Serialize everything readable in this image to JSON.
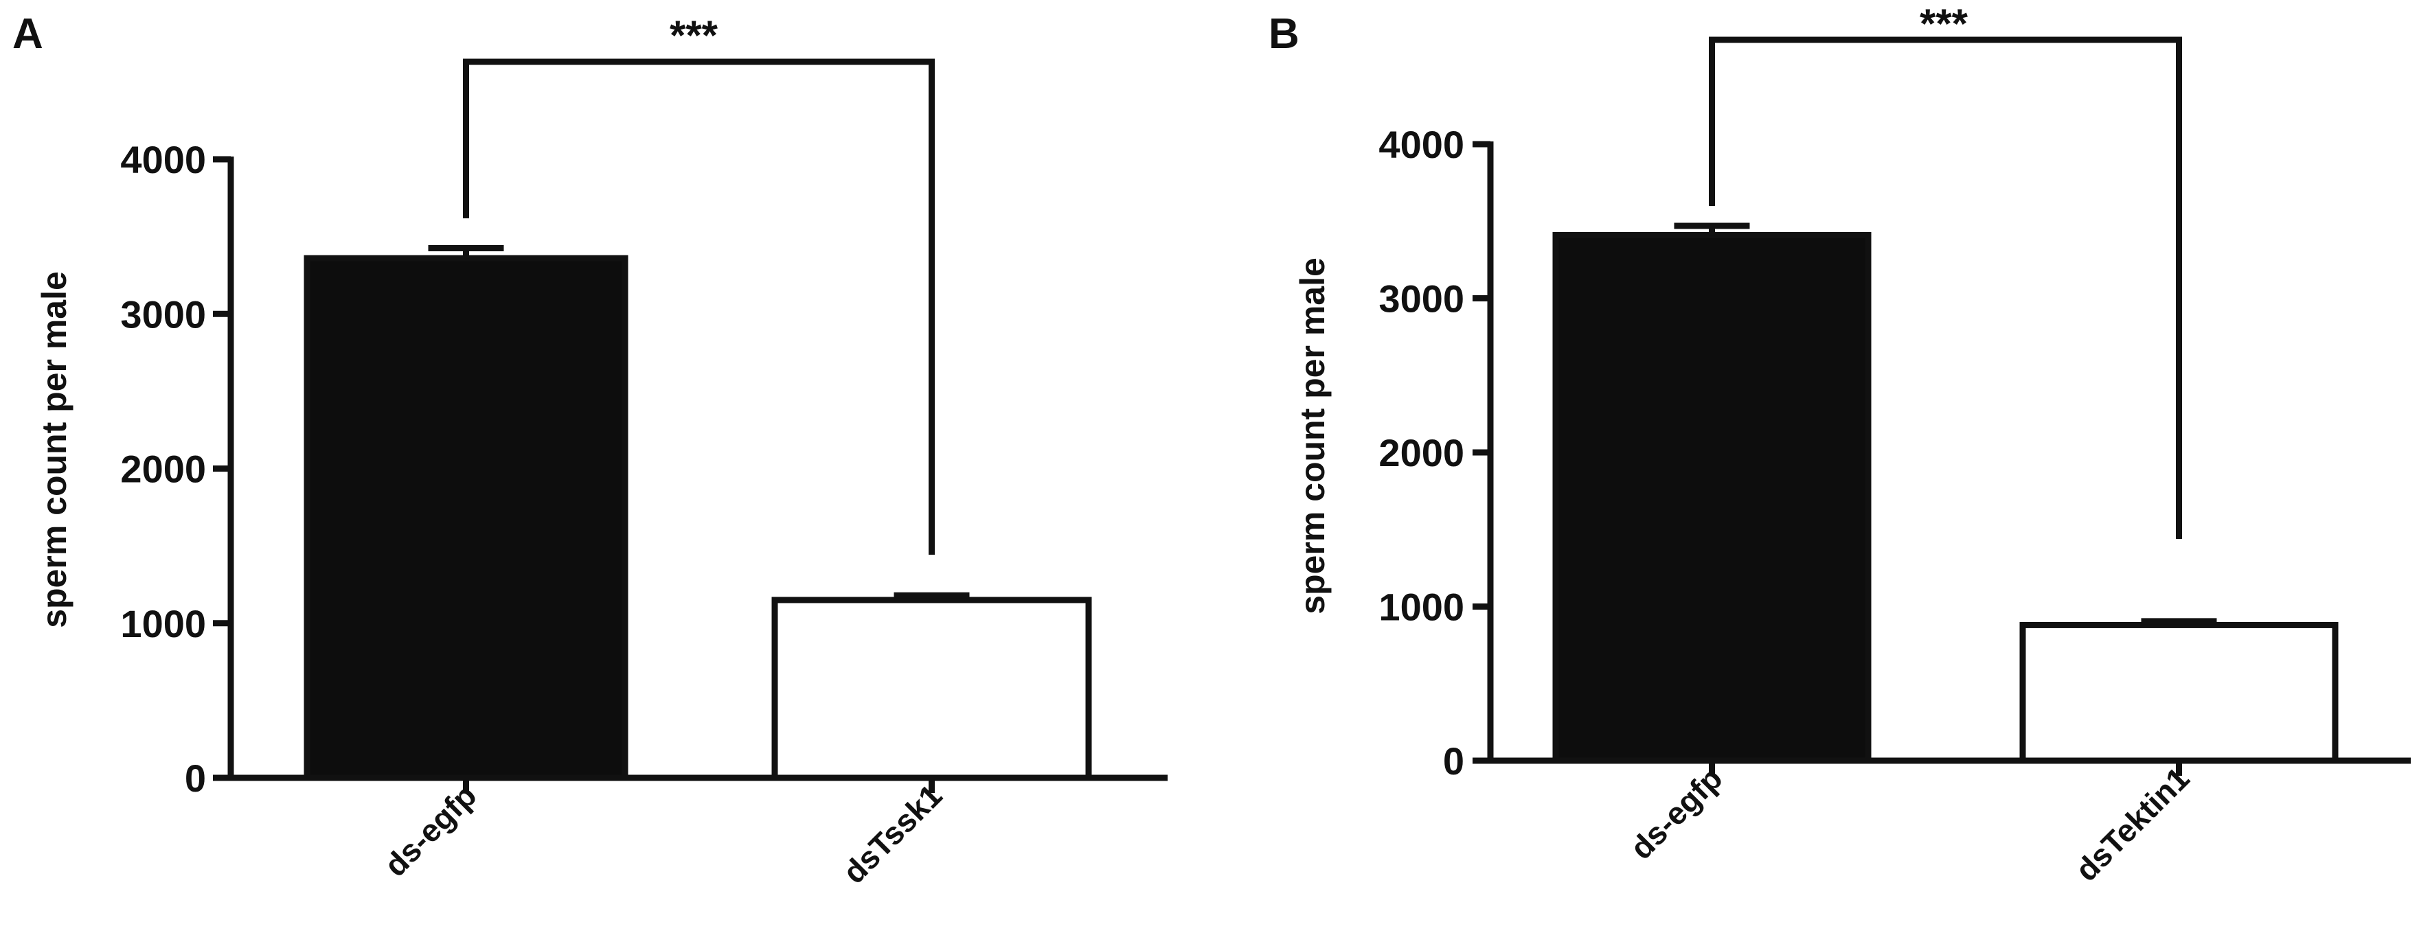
{
  "chart_data": [
    {
      "type": "bar",
      "panel": "A",
      "categories": [
        "ds-egfp",
        "dsTssk1"
      ],
      "values": [
        3360,
        1150
      ],
      "errors": [
        65,
        30
      ],
      "bar_colors": [
        "#0d0d0d",
        "#ffffff"
      ],
      "ylabel": "sperm count per male",
      "ylim": [
        0,
        4000
      ],
      "yticks": [
        0,
        1000,
        2000,
        3000,
        4000
      ],
      "significance": "***",
      "grid": false,
      "legend": "none"
    },
    {
      "type": "bar",
      "panel": "B",
      "categories": [
        "ds-egfp",
        "dsTektin1"
      ],
      "values": [
        3410,
        880
      ],
      "errors": [
        60,
        25
      ],
      "bar_colors": [
        "#0d0d0d",
        "#ffffff"
      ],
      "ylabel": "sperm count per male",
      "ylim": [
        0,
        4000
      ],
      "yticks": [
        0,
        1000,
        2000,
        3000,
        4000
      ],
      "significance": "***",
      "grid": false,
      "legend": "none"
    }
  ]
}
